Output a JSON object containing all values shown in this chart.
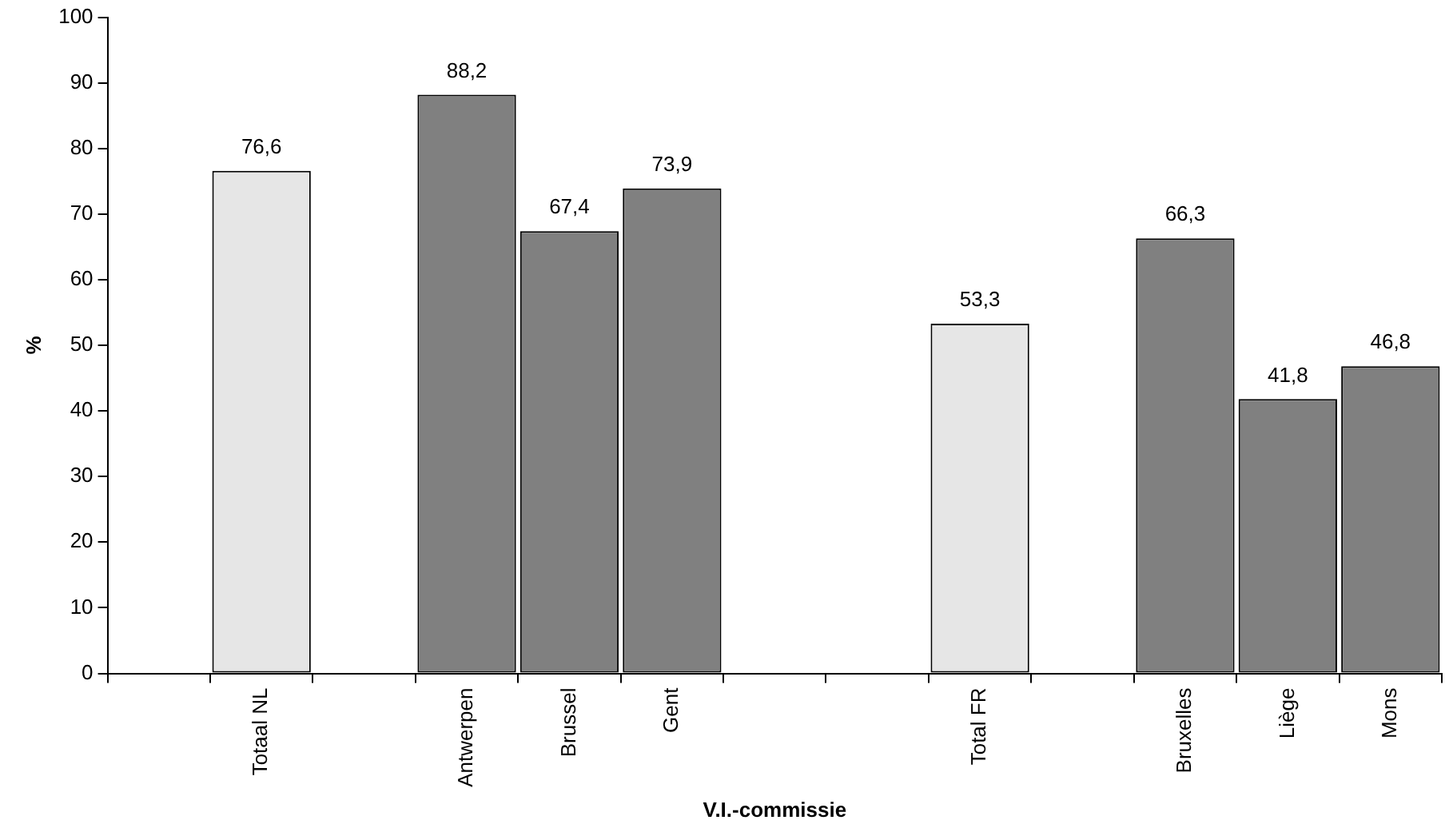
{
  "chart_data": {
    "type": "bar",
    "xlabel": "V.I.-commissie",
    "ylabel": "%",
    "categories": [
      null,
      "Totaal NL",
      null,
      "Antwerpen",
      "Brussel",
      "Gent",
      null,
      null,
      "Total FR",
      null,
      "Bruxelles",
      "Liège",
      "Mons"
    ],
    "values": [
      null,
      76.6,
      null,
      88.2,
      67.4,
      73.9,
      null,
      null,
      53.3,
      null,
      66.3,
      41.8,
      46.8
    ],
    "value_labels": [
      null,
      "76,6",
      null,
      "88,2",
      "67,4",
      "73,9",
      null,
      null,
      "53,3",
      null,
      "66,3",
      "41,8",
      "46,8"
    ],
    "colors": [
      "#808080",
      "#e6e6e6",
      "#808080",
      "#808080",
      "#808080",
      "#808080",
      "#808080",
      "#808080",
      "#e6e6e6",
      "#808080",
      "#808080",
      "#808080",
      "#808080"
    ],
    "ylim": [
      0,
      100
    ],
    "yticks": [
      0,
      10,
      20,
      30,
      40,
      50,
      60,
      70,
      80,
      90,
      100
    ],
    "grid": false,
    "legend": false
  }
}
